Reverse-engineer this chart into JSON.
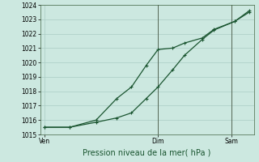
{
  "xlabel": "Pression niveau de la mer( hPa )",
  "bg_color": "#cce8e0",
  "grid_color": "#aaccc4",
  "line_color": "#1a5530",
  "vline_color": "#556655",
  "ylim": [
    1015.0,
    1024.0
  ],
  "yticks": [
    1015,
    1016,
    1017,
    1018,
    1019,
    1020,
    1021,
    1022,
    1023,
    1024
  ],
  "xlim": [
    0,
    14.5
  ],
  "xtick_labels": [
    "Ven",
    "",
    "Dim",
    "",
    "Sam"
  ],
  "xtick_positions": [
    0.3,
    4,
    8,
    11,
    13
  ],
  "vline_positions": [
    8,
    13
  ],
  "line1_x": [
    0.3,
    2.0,
    3.8,
    5.2,
    6.2,
    7.2,
    8.0,
    9.0,
    9.8,
    11.0,
    11.8,
    13.2,
    14.2
  ],
  "line1_y": [
    1015.5,
    1015.5,
    1016.0,
    1017.5,
    1018.3,
    1019.8,
    1020.9,
    1021.0,
    1021.35,
    1021.7,
    1022.3,
    1022.85,
    1023.5
  ],
  "line2_x": [
    0.3,
    2.0,
    3.8,
    5.2,
    6.2,
    7.2,
    8.0,
    9.0,
    9.8,
    11.0,
    11.8,
    13.2,
    14.2
  ],
  "line2_y": [
    1015.5,
    1015.5,
    1015.85,
    1016.15,
    1016.5,
    1017.5,
    1018.3,
    1019.5,
    1020.5,
    1021.6,
    1022.25,
    1022.85,
    1023.6
  ],
  "figsize": [
    3.2,
    2.0
  ],
  "dpi": 100,
  "xlabel_fontsize": 7,
  "tick_fontsize": 5.5,
  "marker_size": 2.8,
  "line_width": 0.9
}
